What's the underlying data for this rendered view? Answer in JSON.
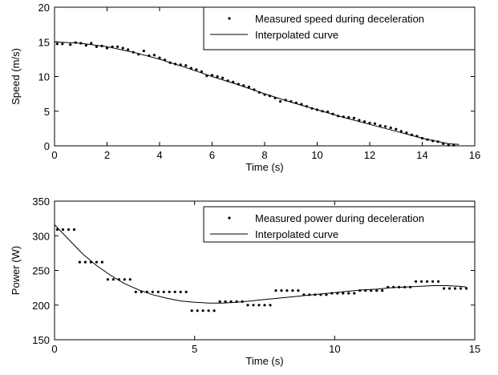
{
  "chart_data": [
    {
      "type": "scatter",
      "xlabel": "Time (s)",
      "ylabel": "Speed (m/s)",
      "xlim": [
        0,
        16
      ],
      "ylim": [
        0,
        20
      ],
      "xticks": [
        0,
        2,
        4,
        6,
        8,
        10,
        12,
        14,
        16
      ],
      "yticks": [
        0,
        5,
        10,
        15,
        20
      ],
      "grid": false,
      "legend_position": "top-right",
      "series": [
        {
          "name": "Measured speed during deceleration",
          "style": "dots",
          "color": "#000000",
          "points": [
            [
              0.1,
              14.7
            ],
            [
              0.3,
              14.7
            ],
            [
              0.6,
              14.6
            ],
            [
              0.8,
              14.9
            ],
            [
              1.0,
              14.8
            ],
            [
              1.2,
              14.5
            ],
            [
              1.4,
              14.8
            ],
            [
              1.6,
              14.3
            ],
            [
              1.8,
              14.4
            ],
            [
              2.0,
              14.1
            ],
            [
              2.2,
              14.3
            ],
            [
              2.4,
              14.3
            ],
            [
              2.6,
              14.1
            ],
            [
              2.8,
              13.9
            ],
            [
              3.0,
              13.5
            ],
            [
              3.2,
              13.2
            ],
            [
              3.4,
              13.7
            ],
            [
              3.6,
              13.0
            ],
            [
              3.8,
              13.1
            ],
            [
              4.0,
              12.7
            ],
            [
              4.2,
              12.4
            ],
            [
              4.4,
              12.0
            ],
            [
              4.6,
              11.8
            ],
            [
              4.8,
              11.7
            ],
            [
              5.0,
              11.6
            ],
            [
              5.2,
              11.2
            ],
            [
              5.4,
              11.0
            ],
            [
              5.6,
              10.7
            ],
            [
              5.8,
              10.1
            ],
            [
              6.0,
              10.2
            ],
            [
              6.2,
              10.0
            ],
            [
              6.4,
              9.8
            ],
            [
              6.6,
              9.4
            ],
            [
              6.8,
              9.2
            ],
            [
              7.0,
              8.9
            ],
            [
              7.2,
              8.7
            ],
            [
              7.4,
              8.5
            ],
            [
              7.6,
              8.1
            ],
            [
              7.8,
              7.7
            ],
            [
              8.0,
              7.4
            ],
            [
              8.2,
              7.2
            ],
            [
              8.4,
              6.9
            ],
            [
              8.6,
              6.4
            ],
            [
              8.8,
              6.6
            ],
            [
              9.0,
              6.4
            ],
            [
              9.2,
              6.2
            ],
            [
              9.4,
              6.0
            ],
            [
              9.6,
              5.7
            ],
            [
              9.8,
              5.4
            ],
            [
              10.0,
              5.2
            ],
            [
              10.2,
              5.0
            ],
            [
              10.4,
              4.9
            ],
            [
              10.6,
              4.6
            ],
            [
              10.8,
              4.3
            ],
            [
              11.0,
              4.2
            ],
            [
              11.2,
              4.1
            ],
            [
              11.4,
              4.0
            ],
            [
              11.6,
              3.7
            ],
            [
              11.8,
              3.5
            ],
            [
              12.0,
              3.3
            ],
            [
              12.2,
              3.2
            ],
            [
              12.4,
              2.9
            ],
            [
              12.6,
              2.8
            ],
            [
              12.8,
              2.6
            ],
            [
              13.0,
              2.4
            ],
            [
              13.2,
              2.1
            ],
            [
              13.4,
              1.9
            ],
            [
              13.6,
              1.6
            ],
            [
              13.8,
              1.4
            ],
            [
              14.0,
              1.1
            ],
            [
              14.2,
              0.9
            ],
            [
              14.4,
              0.7
            ],
            [
              14.6,
              0.6
            ],
            [
              14.8,
              0.3
            ],
            [
              15.0,
              0.1
            ],
            [
              15.2,
              0.1
            ]
          ]
        },
        {
          "name": "Interpolated curve",
          "style": "line",
          "color": "#000000",
          "points": [
            [
              0,
              15.0
            ],
            [
              1,
              14.8
            ],
            [
              2,
              14.3
            ],
            [
              3,
              13.5
            ],
            [
              4,
              12.5
            ],
            [
              5,
              11.3
            ],
            [
              6,
              10.0
            ],
            [
              7,
              8.8
            ],
            [
              8,
              7.5
            ],
            [
              9,
              6.3
            ],
            [
              10,
              5.2
            ],
            [
              11,
              4.1
            ],
            [
              12,
              3.1
            ],
            [
              13,
              2.1
            ],
            [
              14,
              1.1
            ],
            [
              15,
              0.3
            ],
            [
              15.4,
              0.2
            ]
          ]
        }
      ]
    },
    {
      "type": "scatter",
      "xlabel": "Time (s)",
      "ylabel": "Power (W)",
      "xlim": [
        0,
        15
      ],
      "ylim": [
        150,
        350
      ],
      "xticks": [
        0,
        5,
        10,
        15
      ],
      "yticks": [
        150,
        200,
        250,
        300,
        350
      ],
      "grid": false,
      "legend_position": "top-right",
      "series": [
        {
          "name": "Measured power during deceleration",
          "style": "dots",
          "color": "#000000",
          "points": [
            [
              0.1,
              309
            ],
            [
              0.3,
              309
            ],
            [
              0.5,
              309
            ],
            [
              0.7,
              309
            ],
            [
              0.9,
              262
            ],
            [
              1.1,
              262
            ],
            [
              1.3,
              262
            ],
            [
              1.5,
              262
            ],
            [
              1.7,
              262
            ],
            [
              1.9,
              237
            ],
            [
              2.1,
              237
            ],
            [
              2.3,
              237
            ],
            [
              2.5,
              237
            ],
            [
              2.7,
              237
            ],
            [
              2.9,
              219
            ],
            [
              3.1,
              219
            ],
            [
              3.3,
              219
            ],
            [
              3.5,
              219
            ],
            [
              3.7,
              219
            ],
            [
              3.9,
              219
            ],
            [
              4.1,
              219
            ],
            [
              4.3,
              219
            ],
            [
              4.5,
              219
            ],
            [
              4.7,
              219
            ],
            [
              4.9,
              192
            ],
            [
              5.1,
              192
            ],
            [
              5.3,
              192
            ],
            [
              5.5,
              192
            ],
            [
              5.7,
              192
            ],
            [
              5.9,
              205
            ],
            [
              6.1,
              205
            ],
            [
              6.3,
              205
            ],
            [
              6.5,
              205
            ],
            [
              6.7,
              205
            ],
            [
              6.9,
              200
            ],
            [
              7.1,
              200
            ],
            [
              7.3,
              200
            ],
            [
              7.5,
              200
            ],
            [
              7.7,
              200
            ],
            [
              7.9,
              221
            ],
            [
              8.1,
              221
            ],
            [
              8.3,
              221
            ],
            [
              8.5,
              221
            ],
            [
              8.7,
              221
            ],
            [
              8.9,
              215
            ],
            [
              9.1,
              215
            ],
            [
              9.3,
              215
            ],
            [
              9.5,
              215
            ],
            [
              9.7,
              215
            ],
            [
              9.9,
              217
            ],
            [
              10.1,
              217
            ],
            [
              10.3,
              217
            ],
            [
              10.5,
              217
            ],
            [
              10.7,
              217
            ],
            [
              10.9,
              221
            ],
            [
              11.1,
              221
            ],
            [
              11.3,
              221
            ],
            [
              11.5,
              221
            ],
            [
              11.7,
              221
            ],
            [
              11.9,
              226
            ],
            [
              12.1,
              226
            ],
            [
              12.3,
              226
            ],
            [
              12.5,
              226
            ],
            [
              12.7,
              226
            ],
            [
              12.9,
              234
            ],
            [
              13.1,
              234
            ],
            [
              13.3,
              234
            ],
            [
              13.5,
              234
            ],
            [
              13.7,
              234
            ],
            [
              13.9,
              224
            ],
            [
              14.1,
              224
            ],
            [
              14.3,
              224
            ],
            [
              14.5,
              224
            ],
            [
              14.7,
              224
            ]
          ]
        },
        {
          "name": "Interpolated curve",
          "style": "line",
          "color": "#000000",
          "points": [
            [
              0,
              316
            ],
            [
              0.5,
              295
            ],
            [
              1,
              274
            ],
            [
              1.5,
              257
            ],
            [
              2,
              243
            ],
            [
              2.5,
              231
            ],
            [
              3,
              222
            ],
            [
              3.5,
              215
            ],
            [
              4,
              210
            ],
            [
              4.5,
              206
            ],
            [
              5,
              204
            ],
            [
              5.5,
              203
            ],
            [
              6,
              203
            ],
            [
              6.5,
              204
            ],
            [
              7,
              206
            ],
            [
              7.5,
              208
            ],
            [
              8,
              210
            ],
            [
              8.5,
              212
            ],
            [
              9,
              214
            ],
            [
              9.5,
              216
            ],
            [
              10,
              218
            ],
            [
              10.5,
              220
            ],
            [
              11,
              222
            ],
            [
              11.5,
              223
            ],
            [
              12,
              225
            ],
            [
              12.5,
              226
            ],
            [
              13,
              227
            ],
            [
              13.5,
              228
            ],
            [
              14,
              228
            ],
            [
              14.5,
              227
            ],
            [
              14.7,
              226
            ]
          ]
        }
      ]
    }
  ]
}
